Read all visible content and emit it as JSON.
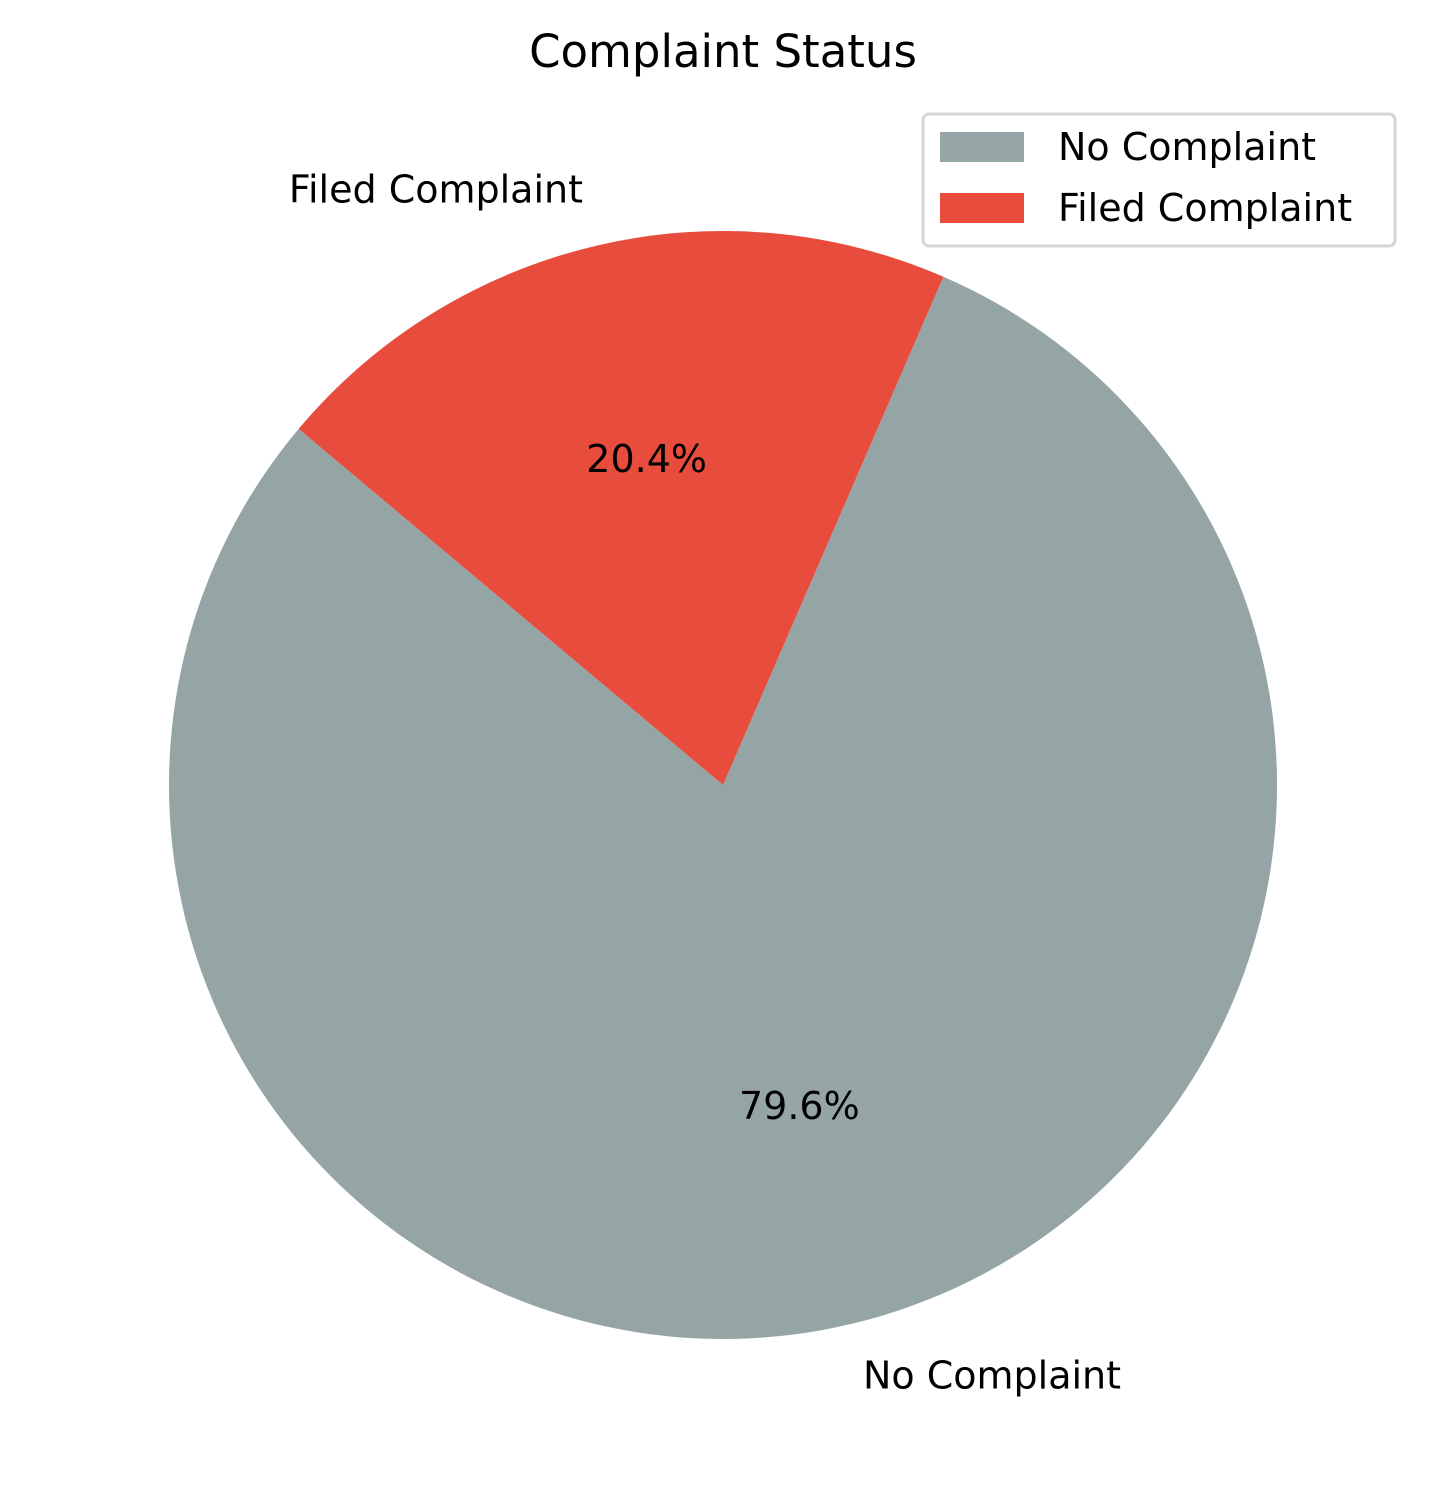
{
  "chart_data": {
    "type": "pie",
    "title": "Complaint Status",
    "slices": [
      {
        "label": "No Complaint",
        "value": 79.6,
        "pct_label": "79.6%",
        "color": "#95a5a6"
      },
      {
        "label": "Filed Complaint",
        "value": 20.4,
        "pct_label": "20.4%",
        "color": "#e74c3c"
      }
    ],
    "legend": {
      "placement": "top-right",
      "entries": [
        "No Complaint",
        "Filed Complaint"
      ]
    }
  }
}
